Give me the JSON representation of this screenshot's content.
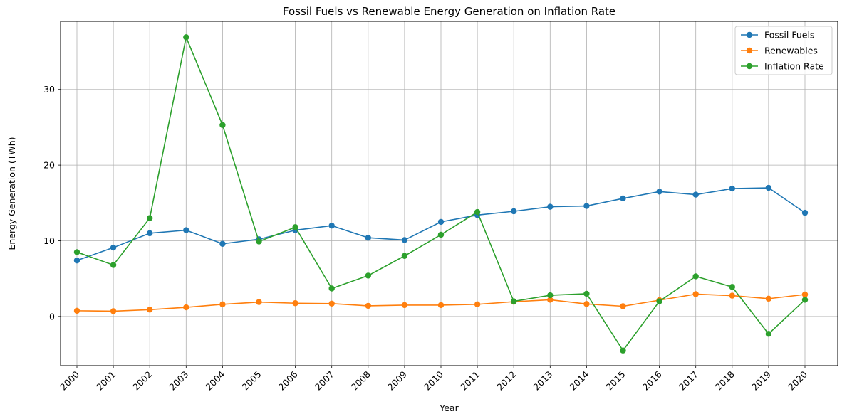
{
  "chart_data": {
    "type": "line",
    "title": "Fossil Fuels vs Renewable Energy Generation on Inflation Rate",
    "xlabel": "Year",
    "ylabel": "Energy Generation (TWh)",
    "categories": [
      "2000",
      "2001",
      "2002",
      "2003",
      "2004",
      "2005",
      "2006",
      "2007",
      "2008",
      "2009",
      "2010",
      "2011",
      "2012",
      "2013",
      "2014",
      "2015",
      "2016",
      "2017",
      "2018",
      "2019",
      "2020"
    ],
    "ylim": [
      -6.5,
      39
    ],
    "yticks": [
      0,
      10,
      20,
      30
    ],
    "grid": true,
    "legend_position": "top-right",
    "series": [
      {
        "name": "Fossil Fuels",
        "color": "#1f77b4",
        "values": [
          7.4,
          9.1,
          11.0,
          11.4,
          9.6,
          10.2,
          11.4,
          12.0,
          10.4,
          10.1,
          12.5,
          13.4,
          13.9,
          14.5,
          14.6,
          15.6,
          16.5,
          16.1,
          16.9,
          17.0,
          13.7
        ]
      },
      {
        "name": "Renewables",
        "color": "#ff7f0e",
        "values": [
          0.75,
          0.7,
          0.9,
          1.2,
          1.6,
          1.9,
          1.75,
          1.7,
          1.4,
          1.5,
          1.5,
          1.6,
          1.95,
          2.2,
          1.65,
          1.35,
          2.15,
          2.95,
          2.75,
          2.35,
          2.9
        ]
      },
      {
        "name": "Inflation Rate",
        "color": "#2ca02c",
        "values": [
          8.5,
          6.8,
          13.0,
          36.9,
          25.3,
          9.9,
          11.8,
          3.7,
          5.4,
          8.0,
          10.8,
          13.8,
          2.0,
          2.8,
          3.0,
          -4.5,
          2.0,
          5.3,
          3.9,
          -2.3,
          2.2
        ]
      }
    ]
  }
}
